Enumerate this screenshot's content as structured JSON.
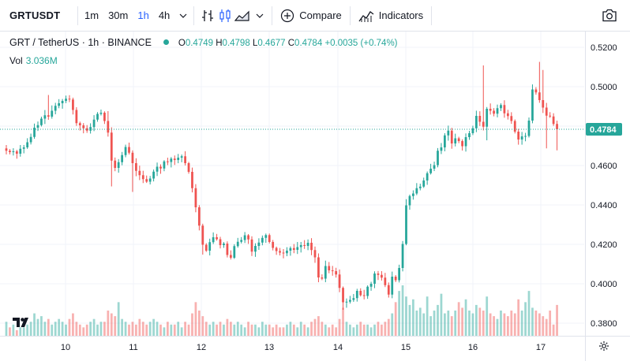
{
  "toolbar": {
    "symbol": "GRTUSDT",
    "timeframes": [
      "1m",
      "30m",
      "1h",
      "4h"
    ],
    "active_timeframe": "1h",
    "compare_label": "Compare",
    "indicators_label": "Indicators"
  },
  "legend": {
    "symbol_line": "GRT / TetherUS · 1h · BINANCE",
    "open_label": "O",
    "open": "0.4749",
    "high_label": "H",
    "high": "0.4798",
    "low_label": "L",
    "low": "0.4677",
    "close_label": "C",
    "close": "0.4784",
    "change": "+0.0035 (+0.74%)",
    "volume_label": "Vol",
    "volume": "3.036M"
  },
  "colors": {
    "up": "#26a69a",
    "down": "#ef5350",
    "grid": "#f0f3fa",
    "accent": "#2962ff"
  },
  "chart_data": {
    "type": "candlestick",
    "price_ticks": [
      "0.5200",
      "0.5000",
      "0.4800",
      "0.4600",
      "0.4400",
      "0.4200",
      "0.4000",
      "0.3800"
    ],
    "price_tick_values": [
      0.52,
      0.5,
      0.48,
      0.46,
      0.44,
      0.42,
      0.4,
      0.38
    ],
    "time_ticks": [
      "10",
      "11",
      "12",
      "13",
      "14",
      "15",
      "16",
      "17"
    ],
    "last_price": "0.4784",
    "last_price_value": 0.4784,
    "ylim": [
      0.374,
      0.526
    ],
    "closes": [
      0.4675,
      0.4668,
      0.4672,
      0.466,
      0.4685,
      0.4692,
      0.4718,
      0.4745,
      0.4792,
      0.4805,
      0.4838,
      0.4855,
      0.4848,
      0.4878,
      0.4903,
      0.4916,
      0.4928,
      0.4939,
      0.4935,
      0.4882,
      0.4815,
      0.4804,
      0.4789,
      0.4777,
      0.4795,
      0.4833,
      0.4862,
      0.4868,
      0.4826,
      0.4767,
      0.4625,
      0.4588,
      0.4617,
      0.4653,
      0.4694,
      0.4665,
      0.4612,
      0.4573,
      0.4551,
      0.4531,
      0.4518,
      0.4534,
      0.4569,
      0.4594,
      0.4585,
      0.4621,
      0.4618,
      0.4635,
      0.4628,
      0.464,
      0.4647,
      0.4612,
      0.4568,
      0.4485,
      0.4388,
      0.4295,
      0.4198,
      0.4168,
      0.4211,
      0.4236,
      0.4226,
      0.4196,
      0.4204,
      0.4146,
      0.4132,
      0.4191,
      0.4213,
      0.4222,
      0.4246,
      0.4225,
      0.4163,
      0.4192,
      0.4209,
      0.4233,
      0.4247,
      0.4212,
      0.4182,
      0.4166,
      0.4158,
      0.4155,
      0.4168,
      0.4181,
      0.4172,
      0.4186,
      0.4196,
      0.4192,
      0.4208,
      0.4171,
      0.4134,
      0.4032,
      0.4026,
      0.409,
      0.4068,
      0.4064,
      0.4047,
      0.3979,
      0.3906,
      0.3909,
      0.3918,
      0.3927,
      0.3964,
      0.3942,
      0.3938,
      0.3985,
      0.4,
      0.4052,
      0.4045,
      0.4031,
      0.3993,
      0.3945,
      0.4036,
      0.4018,
      0.408,
      0.4202,
      0.4398,
      0.4445,
      0.4458,
      0.4485,
      0.4493,
      0.4524,
      0.4561,
      0.4584,
      0.4602,
      0.4675,
      0.4692,
      0.4753,
      0.4777,
      0.4712,
      0.4738,
      0.4724,
      0.4698,
      0.4744,
      0.4764,
      0.4789,
      0.4852,
      0.4822,
      0.4797,
      0.4888,
      0.4878,
      0.4863,
      0.4891,
      0.4907,
      0.4865,
      0.4851,
      0.4826,
      0.4772,
      0.4732,
      0.4748,
      0.475,
      0.4828,
      0.4986,
      0.4971,
      0.4932,
      0.4894,
      0.4853,
      0.4849,
      0.4811,
      0.4784
    ],
    "volume_scale": [
      5,
      3,
      4,
      2,
      3,
      3,
      4,
      5,
      8,
      6,
      7,
      5,
      6,
      4,
      5,
      6,
      5,
      4,
      6,
      8,
      5,
      4,
      3,
      4,
      5,
      6,
      4,
      5,
      5,
      9,
      8,
      7,
      12,
      6,
      5,
      4,
      5,
      4,
      6,
      5,
      4,
      5,
      6,
      5,
      4,
      3,
      5,
      4,
      4,
      5,
      3,
      5,
      4,
      8,
      12,
      9,
      7,
      5,
      4,
      5,
      4,
      5,
      4,
      6,
      5,
      4,
      5,
      4,
      3,
      5,
      4,
      4,
      3,
      5,
      4,
      4,
      3,
      4,
      3,
      3,
      4,
      5,
      4,
      3,
      5,
      4,
      3,
      5,
      6,
      7,
      5,
      4,
      3,
      4,
      3,
      6,
      10,
      5,
      4,
      3,
      4,
      5,
      4,
      4,
      3,
      4,
      5,
      4,
      5,
      6,
      8,
      12,
      16,
      18,
      14,
      11,
      13,
      9,
      10,
      8,
      14,
      7,
      9,
      11,
      15,
      8,
      9,
      7,
      9,
      12,
      10,
      13,
      9,
      8,
      11,
      10,
      9,
      14,
      8,
      7,
      6,
      9,
      8,
      7,
      9,
      8,
      13,
      9,
      12,
      16,
      10,
      9,
      8,
      7,
      6,
      9,
      4,
      11
    ]
  }
}
